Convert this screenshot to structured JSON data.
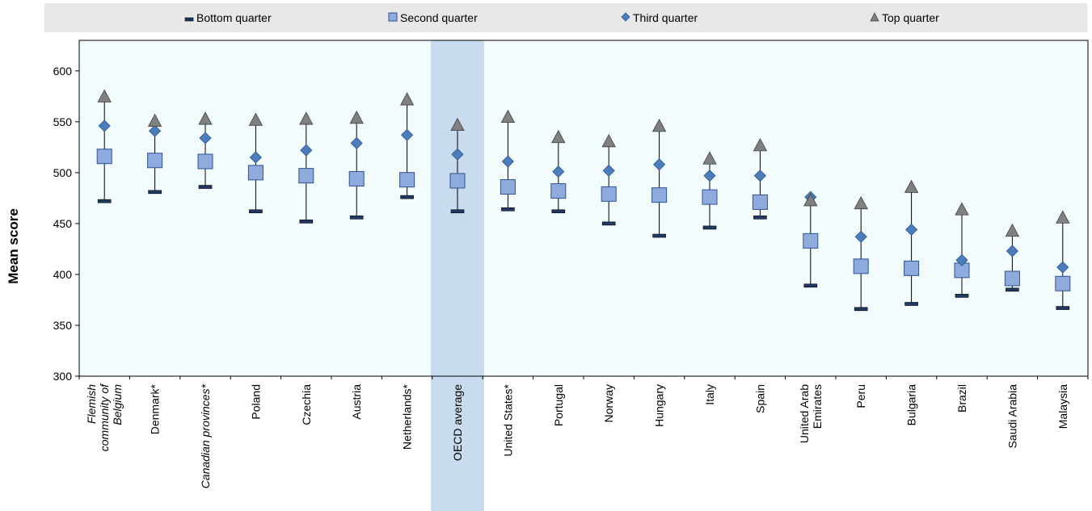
{
  "chart_data": {
    "type": "scatter",
    "ylabel": "Mean score",
    "xlabel": "",
    "ylim": [
      300,
      630
    ],
    "yticks": [
      300,
      350,
      400,
      450,
      500,
      550,
      600
    ],
    "grid": false,
    "legend_position": "top",
    "highlight_category": "OECD average",
    "categories": [
      {
        "label": "Flemish community of Belgium",
        "lines": [
          "Flemish",
          "community of",
          "Belgium"
        ],
        "italic": true
      },
      {
        "label": "Denmark*",
        "lines": [
          "Denmark*"
        ],
        "italic": false
      },
      {
        "label": "Canadian provinces*",
        "lines": [
          "Canadian provinces*"
        ],
        "italic": true
      },
      {
        "label": "Poland",
        "lines": [
          "Poland"
        ],
        "italic": false
      },
      {
        "label": "Czechia",
        "lines": [
          "Czechia"
        ],
        "italic": false
      },
      {
        "label": "Austria",
        "lines": [
          "Austria"
        ],
        "italic": false
      },
      {
        "label": "Netherlands*",
        "lines": [
          "Netherlands*"
        ],
        "italic": false
      },
      {
        "label": "OECD average",
        "lines": [
          "OECD average"
        ],
        "italic": false
      },
      {
        "label": "United States*",
        "lines": [
          "United States*"
        ],
        "italic": false
      },
      {
        "label": "Portugal",
        "lines": [
          "Portugal"
        ],
        "italic": false
      },
      {
        "label": "Norway",
        "lines": [
          "Norway"
        ],
        "italic": false
      },
      {
        "label": "Hungary",
        "lines": [
          "Hungary"
        ],
        "italic": false
      },
      {
        "label": "Italy",
        "lines": [
          "Italy"
        ],
        "italic": false
      },
      {
        "label": "Spain",
        "lines": [
          "Spain"
        ],
        "italic": false
      },
      {
        "label": "United Arab Emirates",
        "lines": [
          "United Arab",
          "Emirates"
        ],
        "italic": false
      },
      {
        "label": "Peru",
        "lines": [
          "Peru"
        ],
        "italic": false
      },
      {
        "label": "Bulgaria",
        "lines": [
          "Bulgaria"
        ],
        "italic": false
      },
      {
        "label": "Brazil",
        "lines": [
          "Brazil"
        ],
        "italic": false
      },
      {
        "label": "Saudi Arabia",
        "lines": [
          "Saudi Arabia"
        ],
        "italic": false
      },
      {
        "label": "Malaysia",
        "lines": [
          "Malaysia"
        ],
        "italic": false
      }
    ],
    "series": [
      {
        "name": "Bottom quarter",
        "marker": "dash",
        "color": "#1f3864",
        "values": [
          472,
          481,
          486,
          462,
          452,
          456,
          476,
          462,
          464,
          462,
          450,
          438,
          446,
          456,
          389,
          366,
          371,
          379,
          385,
          367
        ]
      },
      {
        "name": "Second quarter",
        "marker": "square",
        "color": "#8faadc",
        "values": [
          516,
          512,
          511,
          500,
          497,
          494,
          493,
          492,
          486,
          482,
          479,
          478,
          476,
          471,
          433,
          408,
          406,
          404,
          396,
          391
        ]
      },
      {
        "name": "Third quarter",
        "marker": "diamond",
        "color": "#4a7ebb",
        "values": [
          546,
          541,
          534,
          515,
          522,
          529,
          537,
          518,
          511,
          501,
          502,
          508,
          497,
          497,
          476,
          437,
          444,
          414,
          423,
          407
        ]
      },
      {
        "name": "Top quarter",
        "marker": "triangle",
        "color": "#808080",
        "values": [
          575,
          551,
          553,
          552,
          553,
          554,
          572,
          547,
          555,
          535,
          531,
          546,
          514,
          527,
          473,
          470,
          486,
          464,
          443,
          456
        ]
      }
    ]
  }
}
